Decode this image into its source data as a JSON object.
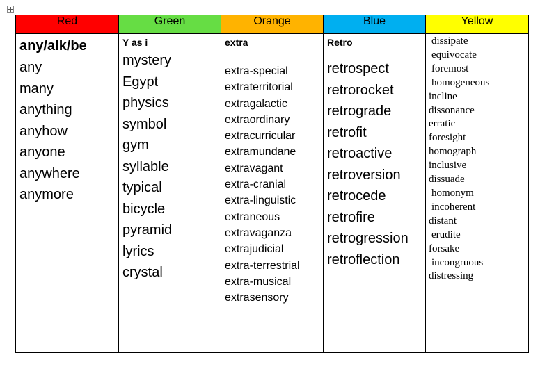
{
  "columns": [
    {
      "header": "Red",
      "color": "#ff0000",
      "heading": "any/alk/be",
      "words": [
        "any",
        "many",
        "anything",
        "anyhow",
        "anyone",
        "anywhere",
        "anymore"
      ]
    },
    {
      "header": "Green",
      "color": "#66dd44",
      "heading": "Y as i",
      "words": [
        "mystery",
        "Egypt",
        "physics",
        "symbol",
        "gym",
        "syllable",
        "typical",
        "bicycle",
        "pyramid",
        "lyrics",
        "crystal"
      ]
    },
    {
      "header": "Orange",
      "color": "#ffb300",
      "heading": "extra",
      "words": [
        "extra-special",
        "extraterritorial",
        "extragalactic",
        "extraordinary",
        "extracurricular",
        "extramundane",
        "extravagant",
        "extra-cranial",
        "extra-linguistic",
        "extraneous",
        "extravaganza",
        "extrajudicial",
        "extra-terrestrial",
        "extra-musical",
        "extrasensory"
      ]
    },
    {
      "header": "Blue",
      "color": "#00aff0",
      "heading": "Retro",
      "words": [
        "retrospect",
        "retrorocket",
        "retrograde",
        "retrofit",
        "retroactive",
        "retroversion",
        "retrocede",
        "retrofire",
        "retrogression",
        "retroflection"
      ]
    },
    {
      "header": "Yellow",
      "color": "#ffff00",
      "words": [
        "dissipate",
        "equivocate",
        "foremost",
        "homogeneous",
        "incline",
        "dissonance",
        "erratic",
        "foresight",
        "homograph",
        "inclusive",
        "dissuade",
        "homonym",
        "incoherent",
        "distant",
        "erudite",
        "forsake",
        "incongruous",
        "distressing"
      ]
    }
  ]
}
